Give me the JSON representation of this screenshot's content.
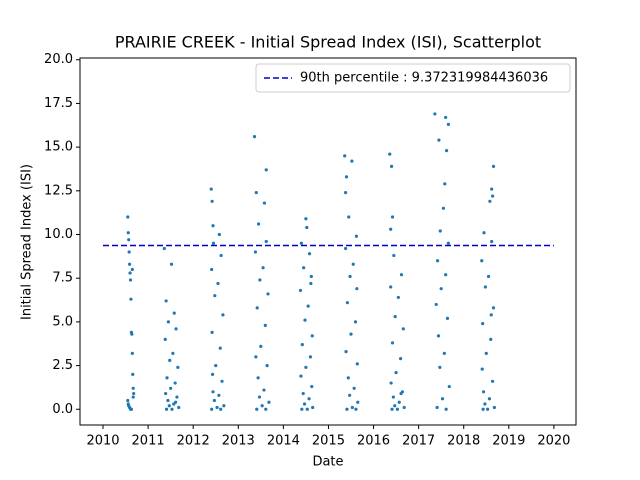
{
  "chart_data": {
    "type": "scatter",
    "title": "PRAIRIE CREEK - Initial Spread Index (ISI), Scatterplot",
    "xlabel": "Date",
    "ylabel": "Initial Spread Index (ISI)",
    "xlim": [
      2009.49,
      2020.49
    ],
    "xticks": [
      2010,
      2011,
      2012,
      2013,
      2014,
      2015,
      2016,
      2017,
      2018,
      2019,
      2020
    ],
    "ylim": [
      -0.9,
      20.1
    ],
    "yticks": [
      {
        "value": 0,
        "label": "0.0"
      },
      {
        "value": 2.5,
        "label": "2.5"
      },
      {
        "value": 5,
        "label": "5.0"
      },
      {
        "value": 7.5,
        "label": "7.5"
      },
      {
        "value": 10,
        "label": "10.0"
      },
      {
        "value": 12.5,
        "label": "12.5"
      },
      {
        "value": 15,
        "label": "15.0"
      },
      {
        "value": 17.5,
        "label": "17.5"
      },
      {
        "value": 20,
        "label": "20.0"
      }
    ],
    "color": "#1f77b4",
    "reference_line": {
      "label": "90th percentile : 9.372319984436036",
      "value": 9.372319984436036,
      "color": "#0000cc",
      "x_range": [
        2010,
        2020
      ]
    },
    "legend": "upper right",
    "x": [
      2010.55,
      2010.56,
      2010.57,
      2010.58,
      2010.59,
      2010.6,
      2010.61,
      2010.62,
      2010.63,
      2010.64,
      2010.65,
      2010.66,
      2010.67,
      2010.68,
      2010.55,
      2010.57,
      2010.59,
      2010.61,
      2010.63,
      2010.65,
      2010.67,
      2010.56,
      2011.36,
      2011.52,
      2011.4,
      2011.58,
      2011.45,
      2011.62,
      2011.38,
      2011.55,
      2011.48,
      2011.66,
      2011.42,
      2011.6,
      2011.5,
      2011.39,
      2011.64,
      2011.44,
      2011.57,
      2011.47,
      2011.68,
      2011.53,
      2011.41,
      2011.61,
      2012.4,
      2012.42,
      2012.44,
      2012.58,
      2012.45,
      2012.62,
      2012.41,
      2012.55,
      2012.48,
      2012.66,
      2012.42,
      2012.6,
      2012.5,
      2012.43,
      2012.64,
      2012.44,
      2012.57,
      2012.47,
      2012.68,
      2012.53,
      2012.41,
      2012.61,
      2013.36,
      2013.62,
      2013.4,
      2013.58,
      2013.45,
      2013.62,
      2013.38,
      2013.55,
      2013.48,
      2013.66,
      2013.42,
      2013.6,
      2013.5,
      2013.39,
      2013.64,
      2013.44,
      2013.57,
      2013.47,
      2013.68,
      2013.53,
      2013.41,
      2013.61,
      2014.5,
      2014.52,
      2014.4,
      2014.58,
      2014.45,
      2014.62,
      2014.38,
      2014.55,
      2014.48,
      2014.64,
      2014.42,
      2014.6,
      2014.5,
      2014.39,
      2014.63,
      2014.44,
      2014.57,
      2014.47,
      2014.65,
      2014.53,
      2014.41,
      2014.61,
      2015.36,
      2015.52,
      2015.4,
      2015.38,
      2015.45,
      2015.62,
      2015.38,
      2015.55,
      2015.48,
      2015.63,
      2015.42,
      2015.6,
      2015.5,
      2015.39,
      2015.64,
      2015.44,
      2015.57,
      2015.47,
      2015.65,
      2015.53,
      2015.41,
      2015.61,
      2016.36,
      2016.4,
      2016.42,
      2016.38,
      2016.45,
      2016.62,
      2016.38,
      2016.55,
      2016.48,
      2016.66,
      2016.42,
      2016.6,
      2016.5,
      2016.39,
      2016.64,
      2016.44,
      2016.57,
      2016.47,
      2016.68,
      2016.53,
      2016.41,
      2016.61,
      2017.52,
      2017.36,
      2017.6,
      2017.66,
      2017.45,
      2017.62,
      2017.58,
      2017.55,
      2017.48,
      2017.66,
      2017.42,
      2017.6,
      2017.5,
      2017.39,
      2017.64,
      2017.44,
      2017.57,
      2017.47,
      2017.68,
      2017.53,
      2017.41,
      2017.61,
      2018.66,
      2018.62,
      2018.64,
      2018.58,
      2018.45,
      2018.62,
      2018.4,
      2018.55,
      2018.48,
      2018.66,
      2018.42,
      2018.6,
      2018.5,
      2018.41,
      2018.64,
      2018.44,
      2018.57,
      2018.47,
      2018.68,
      2018.53,
      2018.43,
      2018.61
    ],
    "y": [
      11.0,
      10.1,
      9.7,
      9.0,
      8.3,
      7.8,
      7.4,
      6.3,
      4.4,
      4.3,
      3.2,
      2.0,
      1.2,
      0.9,
      0.5,
      0.2,
      0.1,
      0.0,
      0.0,
      8.0,
      0.7,
      0.3,
      9.2,
      8.3,
      6.2,
      5.5,
      5.0,
      4.6,
      4.0,
      3.2,
      2.8,
      2.4,
      1.8,
      1.5,
      1.2,
      0.9,
      0.7,
      0.5,
      0.3,
      0.2,
      0.1,
      0.0,
      0.0,
      0.4,
      12.6,
      11.9,
      10.5,
      10.0,
      9.5,
      8.8,
      8.0,
      7.2,
      6.5,
      5.4,
      4.4,
      3.5,
      2.5,
      2.0,
      1.6,
      1.0,
      0.8,
      0.5,
      0.2,
      0.1,
      0.0,
      0.0,
      15.6,
      13.7,
      12.4,
      11.8,
      10.6,
      9.6,
      9.0,
      8.1,
      7.4,
      6.6,
      5.8,
      4.8,
      3.6,
      3.0,
      2.5,
      1.8,
      1.1,
      0.7,
      0.4,
      0.2,
      0.0,
      0.0,
      10.9,
      10.4,
      9.5,
      8.9,
      8.1,
      7.6,
      6.8,
      5.9,
      5.1,
      4.2,
      3.7,
      3.0,
      2.4,
      1.9,
      1.3,
      0.9,
      0.6,
      0.3,
      0.1,
      0.0,
      0.0,
      7.2,
      14.5,
      14.2,
      13.3,
      12.4,
      11.0,
      9.9,
      9.2,
      8.3,
      7.6,
      6.9,
      6.1,
      5.0,
      4.3,
      3.3,
      2.6,
      1.8,
      1.2,
      0.8,
      0.4,
      0.1,
      0.0,
      0.0,
      14.6,
      13.9,
      11.0,
      10.3,
      8.8,
      7.7,
      7.0,
      6.4,
      5.3,
      4.6,
      3.8,
      2.9,
      2.1,
      1.5,
      1.0,
      0.7,
      0.4,
      0.2,
      0.1,
      0.0,
      0.0,
      0.9,
      18.3,
      16.9,
      16.7,
      16.3,
      15.4,
      14.8,
      12.9,
      11.5,
      10.2,
      9.5,
      8.5,
      7.7,
      6.9,
      6.0,
      5.2,
      4.2,
      3.2,
      2.4,
      1.3,
      0.6,
      0.1,
      0.0,
      13.9,
      12.6,
      12.2,
      11.9,
      10.1,
      9.6,
      8.5,
      7.6,
      7.0,
      5.8,
      4.9,
      4.0,
      3.2,
      2.3,
      1.6,
      1.0,
      0.6,
      0.3,
      0.1,
      0.0,
      0.0,
      5.4
    ]
  }
}
